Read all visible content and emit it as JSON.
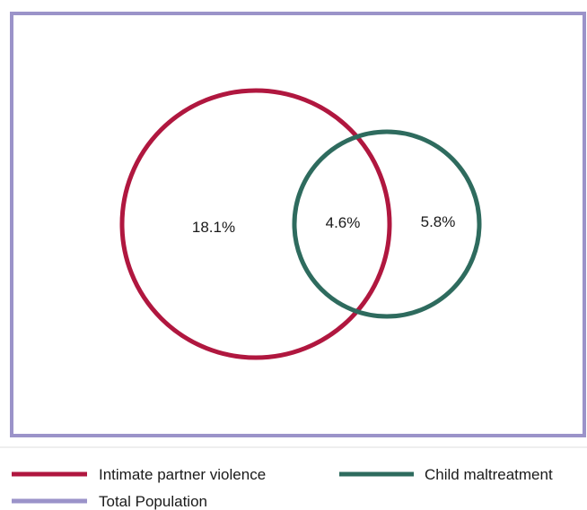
{
  "diagram": {
    "type": "venn",
    "colors": {
      "population_border": "#9b93c9",
      "ipv": "#b0173f",
      "child": "#2e6b5e"
    },
    "regions": {
      "ipv_only": "18.1%",
      "overlap": "4.6%",
      "child_only": "5.8%"
    }
  },
  "legend": {
    "items": [
      {
        "label": "Intimate partner violence",
        "color": "#b0173f"
      },
      {
        "label": "Child maltreatment",
        "color": "#2e6b5e"
      },
      {
        "label": "Total Population",
        "color": "#9b93c9"
      }
    ]
  }
}
